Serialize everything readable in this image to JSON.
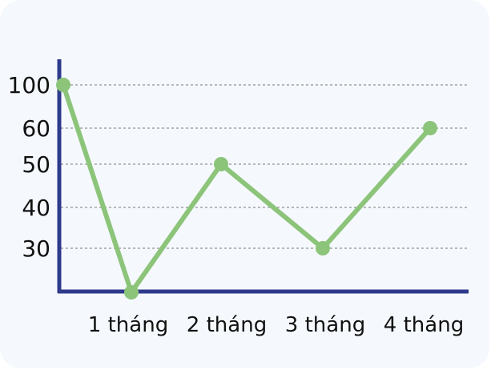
{
  "chart_data": {
    "type": "line",
    "categories": [
      "",
      "1 tháng",
      "2 tháng",
      "3 tháng",
      "4 tháng"
    ],
    "y_ticks": [
      100,
      60,
      50,
      40,
      30
    ],
    "values": [
      100,
      20,
      50,
      30,
      60
    ],
    "grid": "horizontal dashed",
    "legend": "none",
    "colors": {
      "line": "#8cc47a",
      "axis": "#2e3a8c",
      "grid": "#777777",
      "background": "#f5f9fd"
    }
  }
}
